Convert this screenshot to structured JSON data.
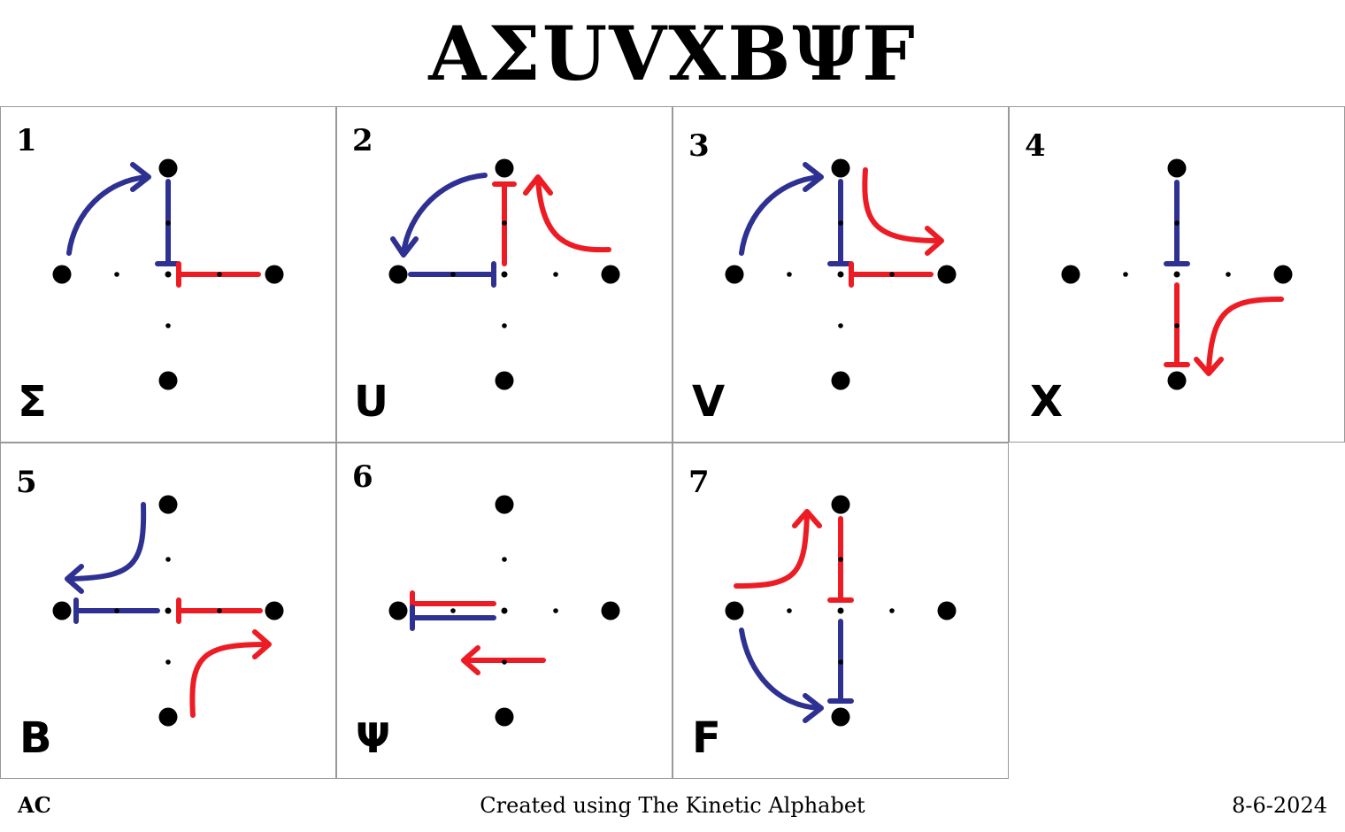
{
  "title": "ΑΣUVXBΨF",
  "footer": {
    "author": "AC",
    "credit": "Created using The Kinetic Alphabet",
    "date": "8-6-2024"
  },
  "colors": {
    "blue": "#2e3192",
    "red": "#ed1c24",
    "dot": "#000000",
    "border": "#999999"
  },
  "panels": [
    {
      "number": "1",
      "letter": "Σ"
    },
    {
      "number": "2",
      "letter": "U"
    },
    {
      "number": "3",
      "letter": "V"
    },
    {
      "number": "4",
      "letter": "X"
    },
    {
      "number": "5",
      "letter": "B"
    },
    {
      "number": "6",
      "letter": "Ψ"
    },
    {
      "number": "7",
      "letter": "F"
    }
  ]
}
